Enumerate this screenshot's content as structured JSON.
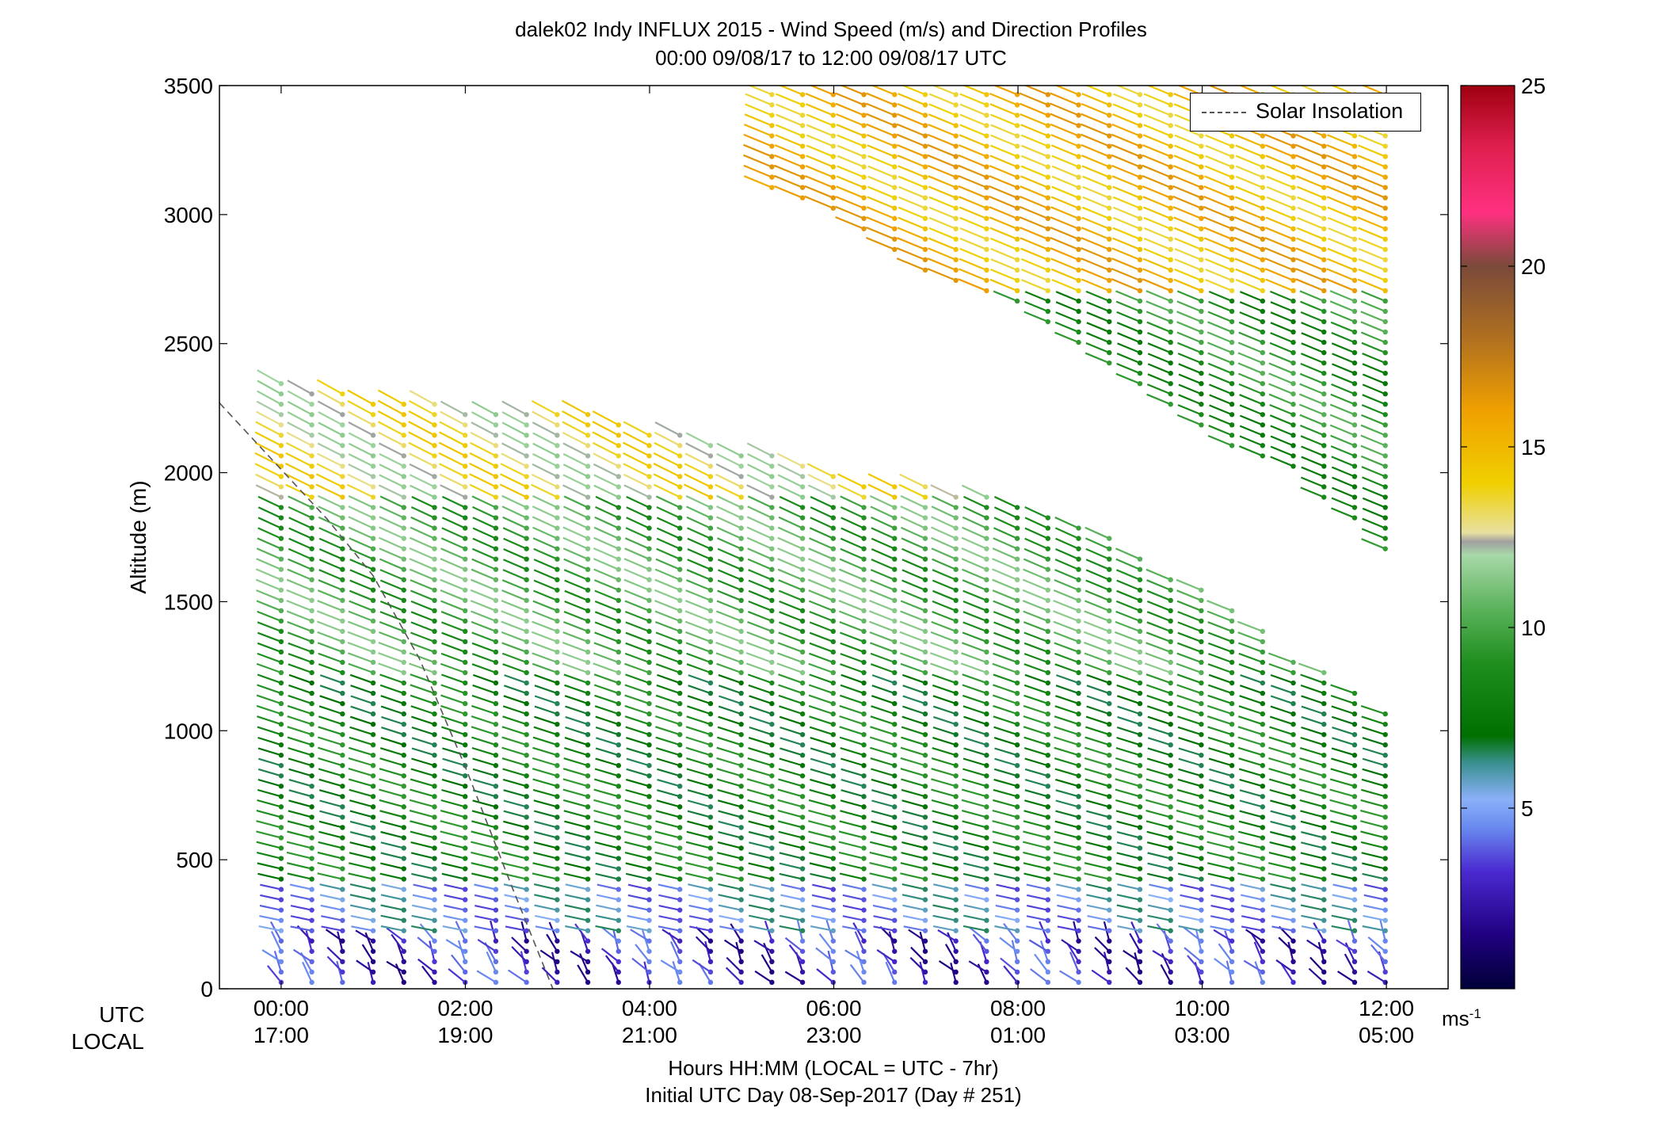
{
  "title_line1": "dalek02 Indy INFLUX 2015 - Wind Speed (m/s) and Direction Profiles",
  "title_line2": "00:00 09/08/17 to 12:00 09/08/17  UTC",
  "xlabel_line1": "Hours HH:MM  (LOCAL = UTC - 7hr)",
  "xlabel_line2": "Initial UTC Day 08-Sep-2017 (Day # 251)",
  "row_label_utc": "UTC",
  "row_label_local": "LOCAL",
  "colorbar_unit_base": "ms",
  "colorbar_unit_exp": "-1",
  "legend_label": "Solar Insolation",
  "chart_data": {
    "type": "wind barb profile",
    "title": "dalek02 Indy INFLUX 2015 - Wind Speed (m/s) and Direction Profiles",
    "subtitle": "00:00 09/08/17 to 12:00 09/08/17  UTC",
    "ylabel": "Altitude (m)",
    "ylim": [
      0,
      3500
    ],
    "xlim_hours_utc": [
      -0.67,
      12.67
    ],
    "yticks": [
      0,
      500,
      1000,
      1500,
      2000,
      2500,
      3000,
      3500
    ],
    "xticks_utc": [
      "00:00",
      "02:00",
      "04:00",
      "06:00",
      "08:00",
      "10:00",
      "12:00"
    ],
    "xticks_local": [
      "17:00",
      "19:00",
      "21:00",
      "23:00",
      "01:00",
      "03:00",
      "05:00"
    ],
    "colorbar": {
      "label": "ms-1",
      "range": [
        0,
        25
      ],
      "ticks": [
        5,
        10,
        15,
        20,
        25
      ]
    },
    "legend": {
      "entries": [
        "Solar Insolation"
      ],
      "placement": "top-right"
    },
    "solar_insolation_line": {
      "x": [
        -0.67,
        0.5,
        1.0,
        1.5,
        2.0,
        2.5,
        2.95
      ],
      "y": [
        2270,
        1820,
        1600,
        1280,
        860,
        400,
        0
      ]
    },
    "profile_interval_hours": 0.333,
    "profile_speed_layers_ms": [
      {
        "alt_range": [
          0,
          200
        ],
        "speed_approx": 3
      },
      {
        "alt_range": [
          200,
          400
        ],
        "speed_approx": 5
      },
      {
        "alt_range": [
          400,
          1200
        ],
        "speed_approx": 8
      },
      {
        "alt_range": [
          1200,
          1900
        ],
        "speed_approx": 10
      },
      {
        "alt_range": [
          1900,
          2400
        ],
        "speed_approx": 13
      },
      {
        "alt_range": [
          2400,
          3500
        ],
        "speed_approx": 15
      }
    ],
    "data_top_altitude_m": {
      "x": [
        0,
        1,
        2,
        3,
        4,
        5,
        6,
        7,
        8,
        9,
        10,
        11,
        12
      ],
      "y": [
        2350,
        2300,
        2250,
        2250,
        2180,
        2100,
        2000,
        1950,
        1900,
        1750,
        1550,
        1300,
        1100
      ]
    },
    "upper_layer_region": {
      "x": [
        5,
        6,
        7,
        8,
        9,
        10,
        11,
        12
      ],
      "y_bottom": [
        3150,
        3000,
        2750,
        2650,
        2400,
        2150,
        2000,
        1700
      ]
    }
  }
}
